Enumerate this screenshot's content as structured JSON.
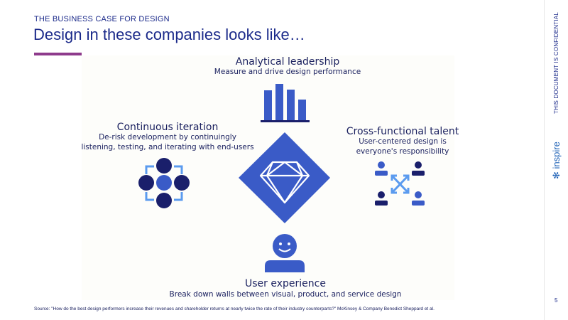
{
  "header": {
    "kicker": "THE BUSINESS CASE FOR DESIGN",
    "title": "Design in these companies looks like…"
  },
  "pillars": {
    "analytical": {
      "title": "Analytical leadership",
      "subtitle": "Measure and drive design performance"
    },
    "iteration": {
      "title": "Continuous iteration",
      "line1": "De-risk development by continuingly",
      "line2": "listening, testing, and iterating with end-users"
    },
    "talent": {
      "title": "Cross-functional talent",
      "line1": "User-centered design is",
      "line2": "everyone's responsibility"
    },
    "experience": {
      "title": "User experience",
      "subtitle": "Break down walls between visual, product, and service design"
    }
  },
  "colors": {
    "blue": "#3a5bc7",
    "navy": "#1a1f6b",
    "light_blue": "#5b9bef",
    "accent": "#8e3b8c"
  },
  "footer": {
    "source": "Source: \"How do the best design performers increase their revenues and shareholder returns at nearly twice the rate of their industry counterparts?\" McKinsey & Company Benedict Sheppard et al.",
    "page": "5"
  },
  "sidebar": {
    "confidential": "THIS DOCUMENT IS CONFIDENTIAL",
    "logo": "inspire"
  }
}
